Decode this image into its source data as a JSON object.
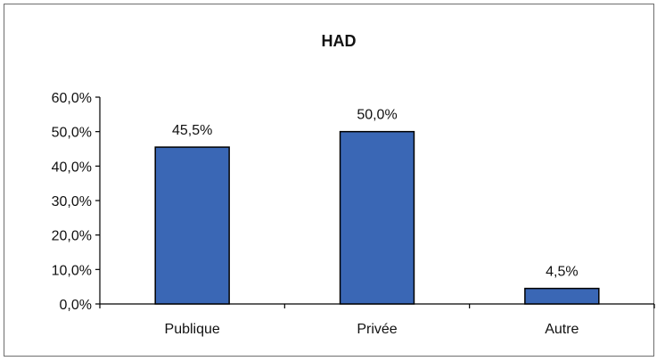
{
  "chart_data": {
    "type": "bar",
    "title": "HAD",
    "categories": [
      "Publique",
      "Privée",
      "Autre"
    ],
    "values": [
      45.5,
      50.0,
      4.5
    ],
    "data_labels": [
      "45,5%",
      "50,0%",
      "4,5%"
    ],
    "xlabel": "",
    "ylabel": "",
    "ylim": [
      0,
      60
    ],
    "yticks": [
      0,
      10,
      20,
      30,
      40,
      50,
      60
    ],
    "ytick_labels": [
      "0,0%",
      "10,0%",
      "20,0%",
      "30,0%",
      "40,0%",
      "50,0%",
      "60,0%"
    ],
    "grid": false,
    "legend": false,
    "bar_color": "#3a67b5",
    "bar_edge_color": "#000000"
  }
}
